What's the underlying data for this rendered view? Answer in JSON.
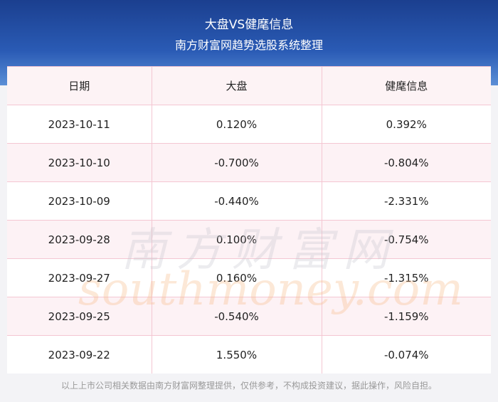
{
  "header": {
    "title": "大盘VS健麾信息",
    "subtitle": "南方财富网趋势选股系统整理"
  },
  "table": {
    "columns": [
      "日期",
      "大盘",
      "健麾信息"
    ],
    "rows": [
      [
        "2023-10-11",
        "0.120%",
        "0.392%"
      ],
      [
        "2023-10-10",
        "-0.700%",
        "-0.804%"
      ],
      [
        "2023-10-09",
        "-0.440%",
        "-2.331%"
      ],
      [
        "2023-09-28",
        "0.100%",
        "-0.754%"
      ],
      [
        "2023-09-27",
        "0.160%",
        "-1.315%"
      ],
      [
        "2023-09-25",
        "-0.540%",
        "-1.159%"
      ],
      [
        "2023-09-22",
        "1.550%",
        "-0.074%"
      ]
    ]
  },
  "watermark": {
    "name": "南方财富网",
    "url": "southmoney.com"
  },
  "footer": "以上上市公司相关数据由南方财富网整理提供，仅供参考，不构成投资建议，据此操作，风险自担。"
}
